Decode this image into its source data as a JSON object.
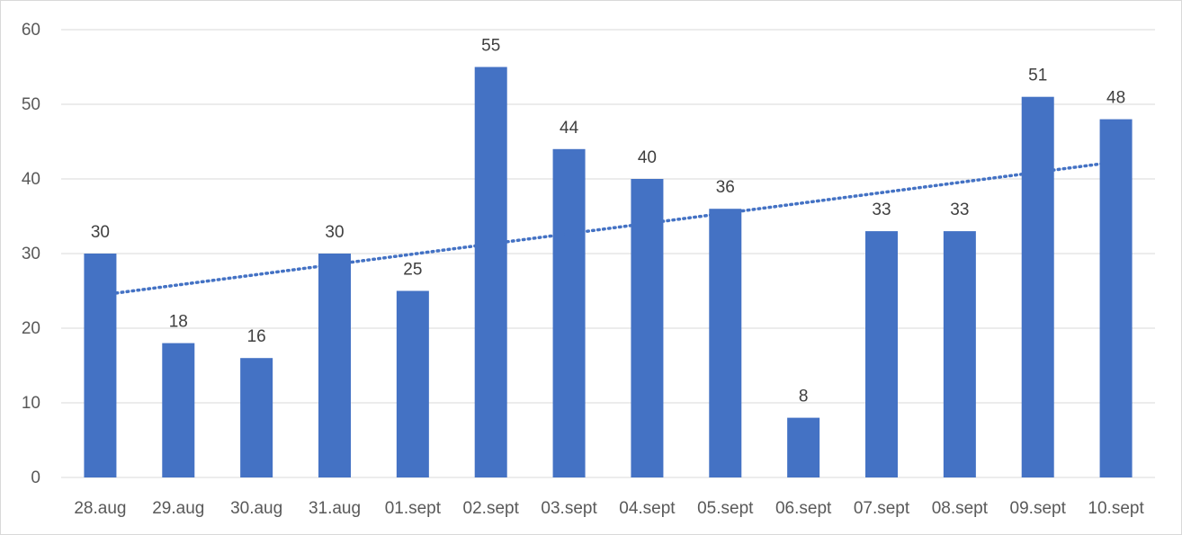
{
  "chart_data": {
    "type": "bar",
    "title": "",
    "xlabel": "",
    "ylabel": "",
    "categories": [
      "28.aug",
      "29.aug",
      "30.aug",
      "31.aug",
      "01.sept",
      "02.sept",
      "03.sept",
      "04.sept",
      "05.sept",
      "06.sept",
      "07.sept",
      "08.sept",
      "09.sept",
      "10.sept"
    ],
    "series": [
      {
        "values": [
          30,
          18,
          16,
          30,
          25,
          55,
          44,
          40,
          36,
          8,
          33,
          33,
          51,
          48
        ],
        "color": "#4472C4",
        "data_labels": true
      }
    ],
    "trendline": {
      "type": "linear",
      "style": "dotted",
      "color": "#4472C4"
    },
    "ylim": [
      0,
      60
    ],
    "yticks": [
      0,
      10,
      20,
      30,
      40,
      50,
      60
    ],
    "grid": true,
    "legend": "none"
  }
}
